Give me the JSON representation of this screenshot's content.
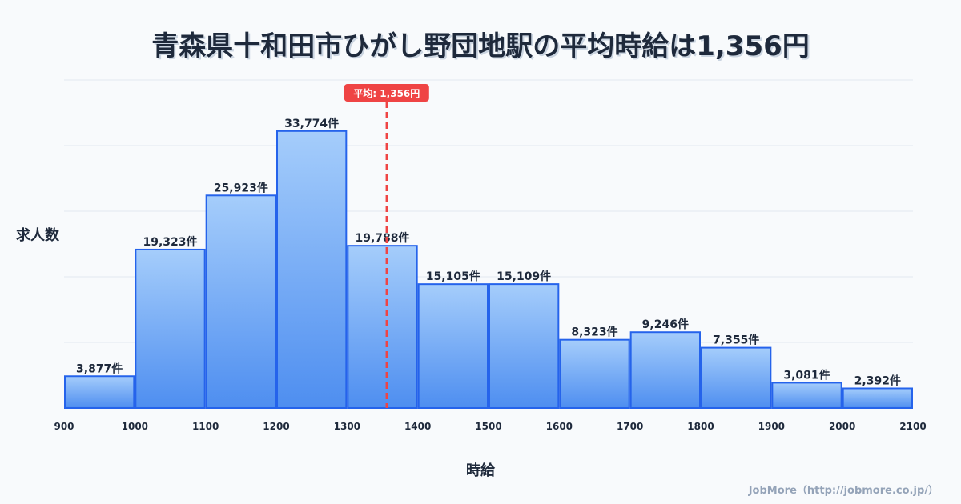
{
  "chart_data": {
    "type": "bar",
    "title": "青森県十和田市ひがし野団地駅の平均時給は1,356円",
    "xlabel": "時給",
    "ylabel": "求人数",
    "bins": [
      900,
      1000,
      1100,
      1200,
      1300,
      1400,
      1500,
      1600,
      1700,
      1800,
      1900,
      2000,
      2100
    ],
    "values": [
      3877,
      19323,
      25923,
      33774,
      19788,
      15105,
      15109,
      8323,
      9246,
      7355,
      3081,
      2392
    ],
    "labels": [
      "3,877件",
      "19,323件",
      "25,923件",
      "33,774件",
      "19,788件",
      "15,105件",
      "15,109件",
      "8,323件",
      "9,246件",
      "7,355件",
      "3,081件",
      "2,392件"
    ],
    "tick_labels": [
      "900",
      "1000",
      "1100",
      "1200",
      "1300",
      "1400",
      "1500",
      "1600",
      "1700",
      "1800",
      "1900",
      "2000",
      "2100"
    ],
    "xlim": [
      900,
      2100
    ],
    "ylim": [
      0,
      40000
    ],
    "grid": true,
    "average": {
      "value": 1356,
      "label": "平均: 1,356円",
      "color": "#ef4444"
    },
    "bar_color_top": "#a5cdfb",
    "bar_color_bottom": "#4e8ef0",
    "bar_stroke": "#2563eb"
  },
  "credit": "JobMore（http://jobmore.co.jp/）"
}
